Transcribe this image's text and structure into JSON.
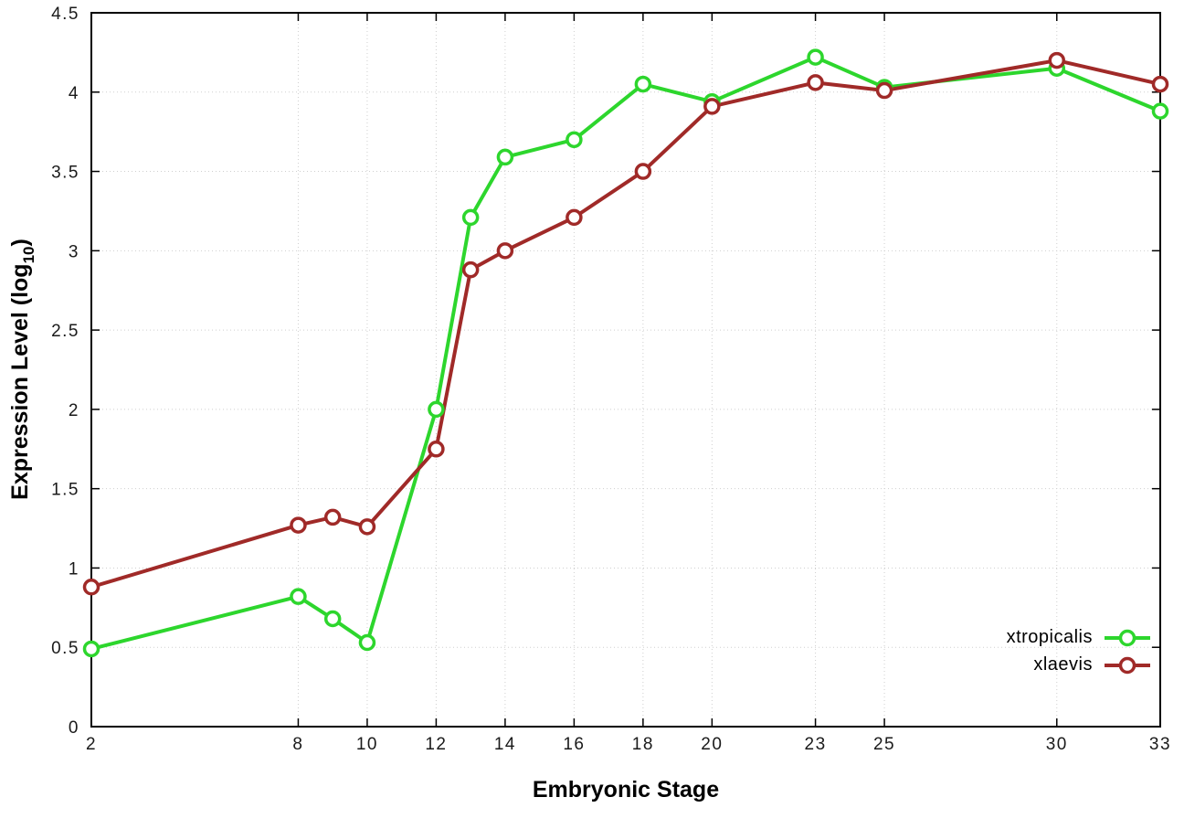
{
  "chart_data": {
    "type": "line",
    "title": "",
    "xlabel": "Embryonic Stage",
    "ylabel": "Expression Level (log10)",
    "ylabel_main": "Expression Level (log",
    "ylabel_sub": "10",
    "ylabel_close": ")",
    "x": [
      2,
      8,
      9,
      10,
      12,
      13,
      14,
      16,
      18,
      20,
      23,
      25,
      30,
      33
    ],
    "series": [
      {
        "name": "xtropicalis",
        "color": "#2dd62d",
        "values": [
          0.49,
          0.82,
          0.68,
          0.53,
          2.0,
          3.21,
          3.59,
          3.7,
          4.05,
          3.94,
          4.22,
          4.03,
          4.15,
          3.88
        ]
      },
      {
        "name": "xlaevis",
        "color": "#a02a28",
        "values": [
          0.88,
          1.27,
          1.32,
          1.26,
          1.75,
          2.88,
          3.0,
          3.21,
          3.5,
          3.91,
          4.06,
          4.01,
          4.2,
          4.05
        ]
      }
    ],
    "xlim": [
      2,
      33
    ],
    "ylim": [
      0,
      4.5
    ],
    "xtick_values": [
      2,
      8,
      10,
      12,
      14,
      16,
      18,
      20,
      23,
      25,
      30,
      33
    ],
    "xtick_labels": [
      "2",
      "8",
      "10",
      "12",
      "14",
      "16",
      "18",
      "20",
      "23",
      "25",
      "30",
      "33"
    ],
    "ytick_values": [
      0,
      0.5,
      1,
      1.5,
      2,
      2.5,
      3,
      3.5,
      4,
      4.5
    ],
    "ytick_labels": [
      "0",
      "0.5",
      "1",
      "1.5",
      "2",
      "2.5",
      "3",
      "3.5",
      "4",
      "4.5"
    ],
    "grid": true,
    "legend_position": "bottom-right"
  }
}
